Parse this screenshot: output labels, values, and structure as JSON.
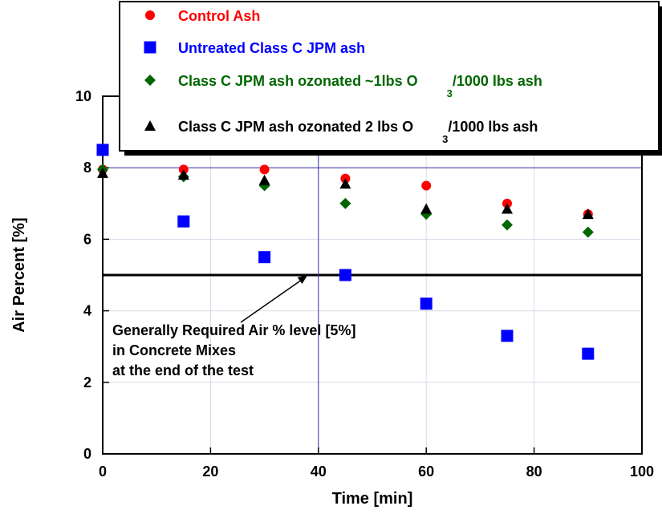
{
  "chart_data": {
    "type": "scatter",
    "xlabel": "Time [min]",
    "ylabel": "Air Percent [%]",
    "xlim": [
      0,
      100
    ],
    "ylim": [
      0,
      10
    ],
    "xticks": [
      "0",
      "20",
      "40",
      "60",
      "80",
      "100"
    ],
    "yticks": [
      "0",
      "2",
      "4",
      "6",
      "8",
      "10"
    ],
    "grid": true,
    "legend_position": "top",
    "x": [
      0,
      15,
      30,
      45,
      60,
      75,
      90
    ],
    "series": [
      {
        "name": "Control Ash",
        "color": "#ff0000",
        "marker": "circle",
        "values": [
          7.95,
          7.95,
          7.95,
          7.7,
          7.5,
          7.0,
          6.7
        ]
      },
      {
        "name": "Untreated Class C JPM ash",
        "color": "#0000ff",
        "marker": "square",
        "values": [
          8.5,
          6.5,
          5.5,
          5.0,
          4.2,
          3.3,
          2.8
        ]
      },
      {
        "name": "Class C JPM ash ozonated ~1lbs O",
        "name_sub": "3",
        "name_suffix": "/1000 lbs ash",
        "color": "#006600",
        "marker": "diamond",
        "values": [
          7.95,
          7.75,
          7.5,
          7.0,
          6.7,
          6.4,
          6.2
        ]
      },
      {
        "name": "Class C JPM ash ozonated 2 lbs O",
        "name_sub": "3",
        "name_suffix": "/1000 lbs ash",
        "color": "#000000",
        "marker": "triangle",
        "values": [
          7.85,
          7.8,
          7.65,
          7.55,
          6.85,
          6.85,
          6.7
        ]
      }
    ],
    "reference_line": {
      "y": 5,
      "color": "#000000"
    },
    "crosshair": {
      "x": 40,
      "y": 8,
      "color": "#3333aa"
    },
    "annotation": {
      "lines": [
        "Generally Required Air % level [5%]",
        "in Concrete Mixes",
        "at the end of the test"
      ],
      "arrow_target": {
        "x": 38,
        "y": 5
      }
    }
  }
}
